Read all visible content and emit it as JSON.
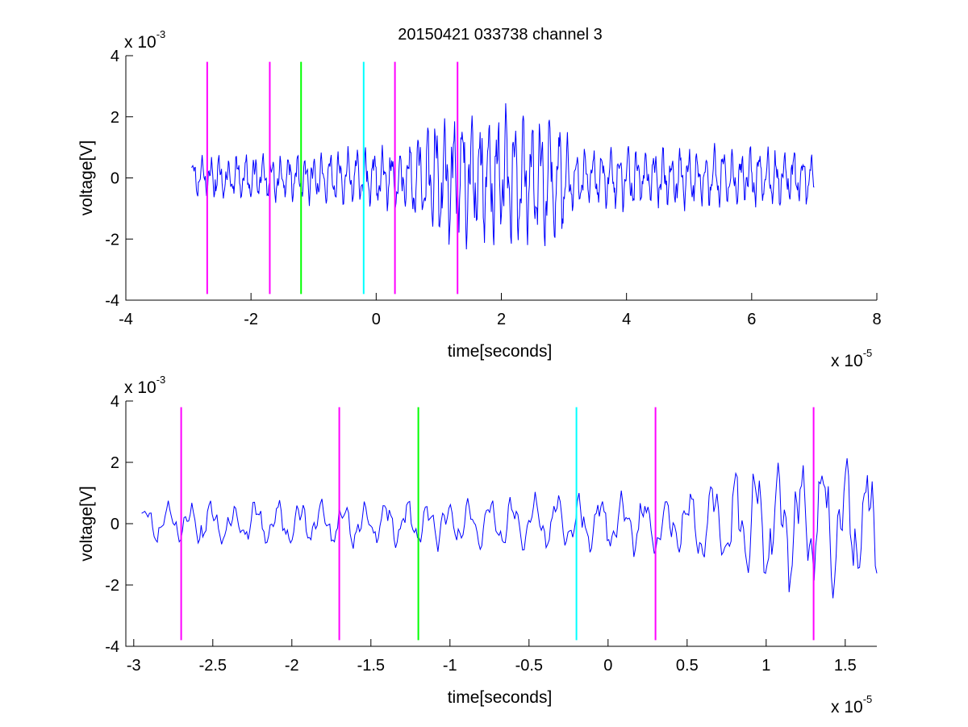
{
  "figure": {
    "title": "20150421 033738 channel 3"
  },
  "colors": {
    "signal": "#0000ff",
    "magenta": "#ff00ff",
    "green": "#00ff00",
    "cyan": "#00ffff",
    "background": "#ffffff"
  },
  "chart_data": [
    {
      "type": "line",
      "title": "20150421 033738 channel 3",
      "xlabel": "time[seconds]",
      "ylabel": "voltage[V]",
      "x_exponent_label": "x 10",
      "x_exponent": "-5",
      "y_exponent_label": "x 10",
      "y_exponent": "-3",
      "xlim": [
        -4,
        8
      ],
      "ylim": [
        -4,
        4
      ],
      "x_ticks": [
        -4,
        -2,
        0,
        2,
        4,
        6,
        8
      ],
      "x_tick_labels": [
        "-4",
        "-2",
        "0",
        "2",
        "4",
        "6",
        "8"
      ],
      "y_ticks": [
        -4,
        -2,
        0,
        2,
        4
      ],
      "y_tick_labels": [
        "-4",
        "-2",
        "0",
        "2",
        "4"
      ],
      "grid": false,
      "series": [
        {
          "color": "#0000ff",
          "x_range": [
            -2.95,
            7.0
          ],
          "description": "noisy voltage trace",
          "amplitude_profile": [
            [
              -2.95,
              0.6
            ],
            [
              -1.0,
              0.7
            ],
            [
              0.5,
              0.9
            ],
            [
              0.8,
              1.8
            ],
            [
              2.9,
              2.0
            ],
            [
              3.2,
              0.9
            ],
            [
              7.0,
              0.8
            ]
          ]
        }
      ],
      "markers": [
        {
          "x": -2.7,
          "color": "#ff00ff",
          "y_range": [
            -3.8,
            3.8
          ]
        },
        {
          "x": -1.7,
          "color": "#ff00ff",
          "y_range": [
            -3.8,
            3.8
          ]
        },
        {
          "x": -1.2,
          "color": "#00ff00",
          "y_range": [
            -3.8,
            3.8
          ]
        },
        {
          "x": -0.2,
          "color": "#00ffff",
          "y_range": [
            -3.8,
            3.8
          ]
        },
        {
          "x": 0.3,
          "color": "#ff00ff",
          "y_range": [
            -3.8,
            3.8
          ]
        },
        {
          "x": 1.3,
          "color": "#ff00ff",
          "y_range": [
            -3.8,
            3.8
          ]
        }
      ]
    },
    {
      "type": "line",
      "title": "",
      "xlabel": "time[seconds]",
      "ylabel": "voltage[V]",
      "x_exponent_label": "x 10",
      "x_exponent": "-5",
      "y_exponent_label": "x 10",
      "y_exponent": "-3",
      "xlim": [
        -3.05,
        1.7
      ],
      "ylim": [
        -4,
        4
      ],
      "x_ticks": [
        -3,
        -2.5,
        -2,
        -1.5,
        -1,
        -0.5,
        0,
        0.5,
        1,
        1.5
      ],
      "x_tick_labels": [
        "-3",
        "-2.5",
        "-2",
        "-1.5",
        "-1",
        "-0.5",
        "0",
        "0.5",
        "1",
        "1.5"
      ],
      "y_ticks": [
        -4,
        -2,
        0,
        2,
        4
      ],
      "y_tick_labels": [
        "-4",
        "-2",
        "0",
        "2",
        "4"
      ],
      "grid": false,
      "series": [
        {
          "color": "#0000ff",
          "x_range": [
            -2.95,
            1.7
          ],
          "description": "zoomed voltage trace",
          "amplitude_profile": [
            [
              -2.95,
              0.6
            ],
            [
              -1.0,
              0.7
            ],
            [
              0.5,
              0.9
            ],
            [
              0.8,
              1.8
            ],
            [
              1.7,
              2.0
            ]
          ]
        }
      ],
      "markers": [
        {
          "x": -2.7,
          "color": "#ff00ff",
          "y_range": [
            -3.8,
            3.8
          ]
        },
        {
          "x": -1.7,
          "color": "#ff00ff",
          "y_range": [
            -3.8,
            3.8
          ]
        },
        {
          "x": -1.2,
          "color": "#00ff00",
          "y_range": [
            -3.8,
            3.8
          ]
        },
        {
          "x": -0.2,
          "color": "#00ffff",
          "y_range": [
            -3.8,
            3.8
          ]
        },
        {
          "x": 0.3,
          "color": "#ff00ff",
          "y_range": [
            -3.8,
            3.8
          ]
        },
        {
          "x": 1.3,
          "color": "#ff00ff",
          "y_range": [
            -3.8,
            3.8
          ]
        }
      ]
    }
  ]
}
